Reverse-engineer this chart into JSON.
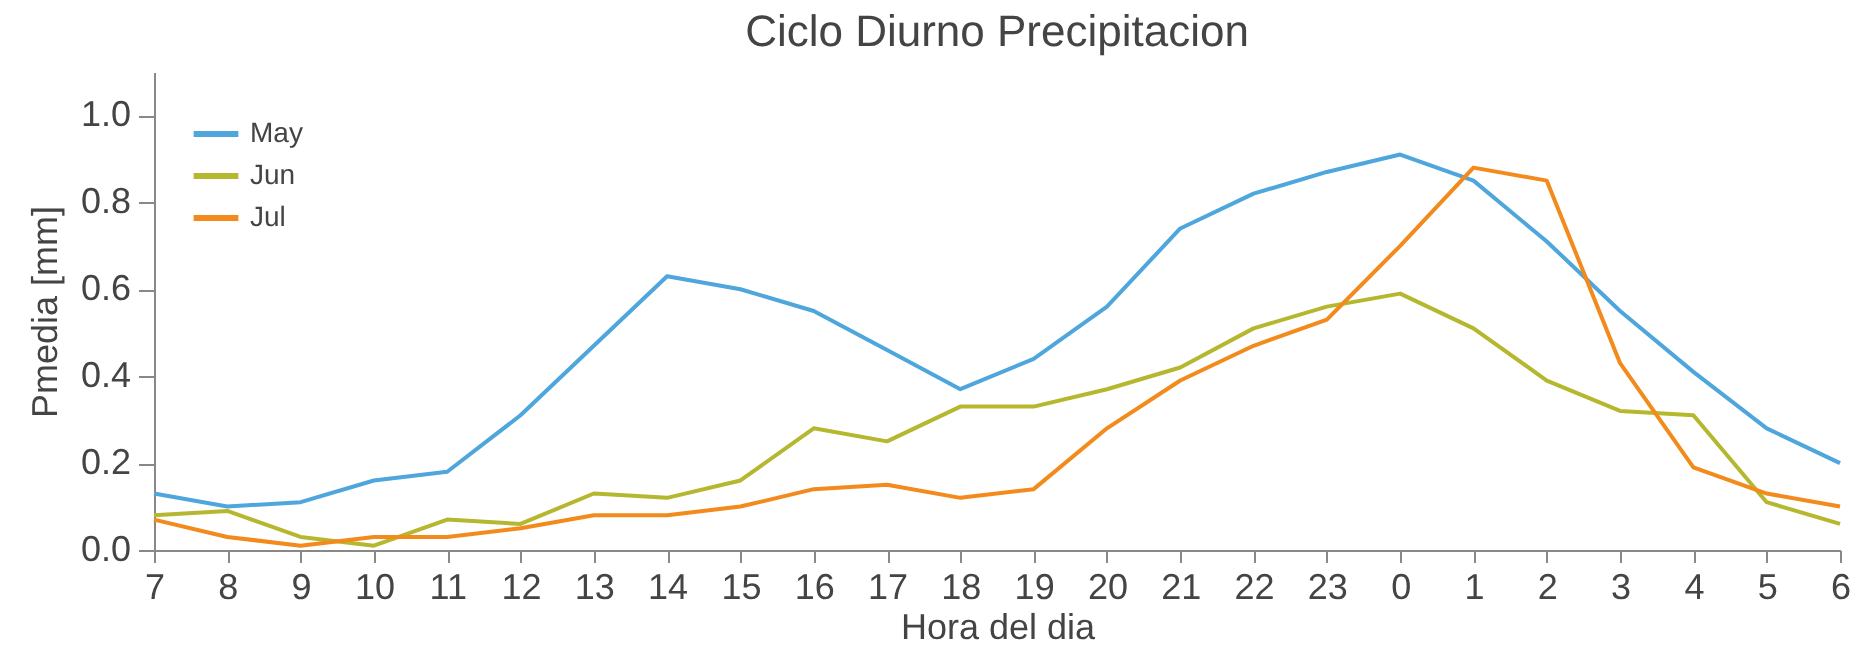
{
  "chart_data": {
    "type": "line",
    "title": "Ciclo Diurno Precipitacion",
    "xlabel": "Hora del dia",
    "ylabel": "Pmedia [mm]",
    "categories": [
      "7",
      "8",
      "9",
      "10",
      "11",
      "12",
      "13",
      "14",
      "15",
      "16",
      "17",
      "18",
      "19",
      "20",
      "21",
      "22",
      "23",
      "0",
      "1",
      "2",
      "3",
      "4",
      "5",
      "6"
    ],
    "series": [
      {
        "name": "May",
        "color": "#4ea6dc",
        "values": [
          0.13,
          0.1,
          0.11,
          0.16,
          0.18,
          0.31,
          0.47,
          0.63,
          0.6,
          0.55,
          0.46,
          0.37,
          0.44,
          0.56,
          0.74,
          0.82,
          0.87,
          0.91,
          0.85,
          0.71,
          0.55,
          0.41,
          0.28,
          0.2
        ]
      },
      {
        "name": "Jun",
        "color": "#b5b82f",
        "values": [
          0.08,
          0.09,
          0.03,
          0.01,
          0.07,
          0.06,
          0.13,
          0.12,
          0.16,
          0.28,
          0.25,
          0.33,
          0.33,
          0.37,
          0.42,
          0.51,
          0.56,
          0.59,
          0.51,
          0.39,
          0.32,
          0.31,
          0.11,
          0.06
        ]
      },
      {
        "name": "Jul",
        "color": "#f28a1c",
        "values": [
          0.07,
          0.03,
          0.01,
          0.03,
          0.03,
          0.05,
          0.08,
          0.08,
          0.1,
          0.14,
          0.15,
          0.12,
          0.14,
          0.28,
          0.39,
          0.47,
          0.53,
          0.7,
          0.88,
          0.85,
          0.43,
          0.19,
          0.13,
          0.1
        ]
      }
    ],
    "ylim": [
      0,
      1.1
    ],
    "yticks": [
      {
        "value": 0,
        "label": "0.0"
      },
      0.2,
      0.4,
      0.6,
      0.8,
      {
        "value": 1,
        "label": "1.0"
      }
    ],
    "grid": false,
    "legend": "top left",
    "line_style": "solid",
    "marker": "none"
  }
}
